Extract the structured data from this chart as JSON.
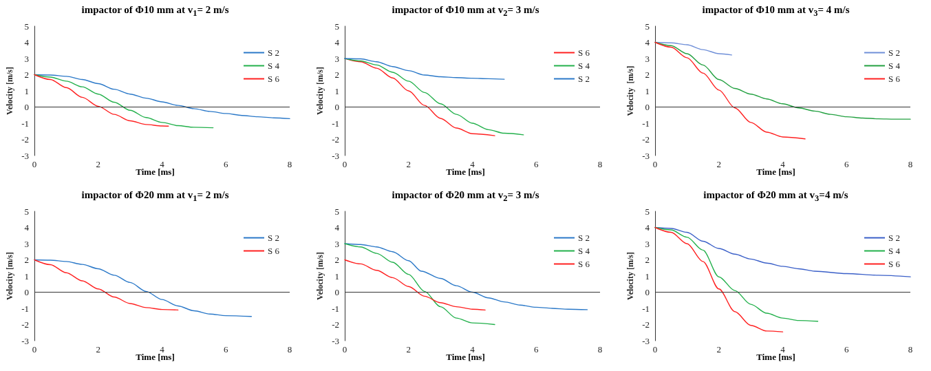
{
  "chart_data": [
    {
      "type": "line",
      "ref_lines": [
        {
          "axis": "y",
          "value": 0
        }
      ],
      "title": "impactor of Φ10 mm at v$_{1}$= 2 m/s",
      "xlabel": "Time [ms]",
      "ylabel": "Velocity [m/s]",
      "xlim": [
        0,
        8
      ],
      "xticks": [
        0,
        2,
        4,
        6,
        8
      ],
      "ylim": [
        -3,
        5
      ],
      "yticks": [
        -3,
        -2,
        -1,
        0,
        1,
        2,
        3,
        4,
        5
      ],
      "grid": false,
      "legend": "right",
      "marker": "none",
      "line_style": "solid",
      "series": [
        {
          "name": "S 2",
          "color": "#2a78c8",
          "x": [
            0,
            0.5,
            1,
            1.5,
            2,
            2.5,
            3,
            3.5,
            4,
            4.5,
            5,
            5.5,
            6,
            6.5,
            7,
            7.5,
            8
          ],
          "values": [
            2,
            1.98,
            1.9,
            1.7,
            1.45,
            1.1,
            0.8,
            0.55,
            0.32,
            0.1,
            -0.1,
            -0.27,
            -0.4,
            -0.52,
            -0.6,
            -0.67,
            -0.72
          ]
        },
        {
          "name": "S 4",
          "color": "#22b04b",
          "x": [
            0,
            0.5,
            1,
            1.5,
            2,
            2.5,
            3,
            3.5,
            4,
            4.5,
            5,
            5.6
          ],
          "values": [
            2,
            1.85,
            1.6,
            1.25,
            0.8,
            0.3,
            -0.2,
            -0.65,
            -0.95,
            -1.15,
            -1.25,
            -1.28
          ]
        },
        {
          "name": "S 6",
          "color": "#ff2020",
          "x": [
            0,
            0.5,
            1,
            1.5,
            2,
            2.5,
            3,
            3.5,
            4,
            4.2
          ],
          "values": [
            2,
            1.7,
            1.2,
            0.6,
            0.05,
            -0.45,
            -0.85,
            -1.08,
            -1.17,
            -1.18
          ]
        }
      ]
    },
    {
      "type": "line",
      "ref_lines": [
        {
          "axis": "y",
          "value": 0
        }
      ],
      "title": "impactor of Φ10 mm at v$_{2}$= 3 m/s",
      "xlabel": "Time [ms]",
      "ylabel": "Velocity [m/s]",
      "xlim": [
        0,
        8
      ],
      "xticks": [
        0,
        2,
        4,
        6,
        8
      ],
      "ylim": [
        -3,
        5
      ],
      "yticks": [
        -3,
        -2,
        -1,
        0,
        1,
        2,
        3,
        4,
        5
      ],
      "grid": false,
      "legend": "right",
      "marker": "none",
      "line_style": "solid",
      "series": [
        {
          "name": "S 6",
          "color": "#ff2020",
          "x": [
            0,
            0.5,
            1,
            1.5,
            2,
            2.5,
            3,
            3.5,
            4,
            4.7
          ],
          "values": [
            3,
            2.8,
            2.4,
            1.8,
            1,
            0.1,
            -0.7,
            -1.3,
            -1.65,
            -1.77
          ]
        },
        {
          "name": "S 4",
          "color": "#22b04b",
          "x": [
            0,
            0.5,
            1,
            1.5,
            2,
            2.5,
            3,
            3.5,
            4,
            4.5,
            5,
            5.6
          ],
          "values": [
            3,
            2.85,
            2.6,
            2.15,
            1.6,
            0.9,
            0.2,
            -0.45,
            -1,
            -1.4,
            -1.62,
            -1.72
          ]
        },
        {
          "name": "S 2",
          "color": "#2a78c8",
          "x": [
            0,
            0.5,
            1,
            1.5,
            2,
            2.5,
            3,
            3.5,
            4,
            4.5,
            5
          ],
          "values": [
            3,
            2.98,
            2.8,
            2.5,
            2.25,
            1.98,
            1.87,
            1.82,
            1.78,
            1.75,
            1.72
          ]
        }
      ]
    },
    {
      "type": "line",
      "ref_lines": [
        {
          "axis": "y",
          "value": 0
        }
      ],
      "title": "impactor of Φ10 mm at v$_{3}$= 4 m/s",
      "xlabel": "Time [ms]",
      "ylabel": "Velocity  [m/s]",
      "xlim": [
        0,
        8
      ],
      "xticks": [
        0,
        2,
        4,
        6,
        8
      ],
      "ylim": [
        -3,
        5
      ],
      "yticks": [
        -3,
        -2,
        -1,
        0,
        1,
        2,
        3,
        4,
        5
      ],
      "grid": false,
      "legend": "right",
      "marker": "none",
      "line_style": "solid",
      "series": [
        {
          "name": "S 2",
          "color": "#6f8fd8",
          "x": [
            0,
            0.5,
            1,
            1.5,
            2,
            2.4
          ],
          "values": [
            4,
            3.97,
            3.85,
            3.55,
            3.3,
            3.22
          ]
        },
        {
          "name": "S 4",
          "color": "#22a040",
          "x": [
            0,
            0.5,
            1,
            1.5,
            2,
            2.5,
            3,
            3.5,
            4,
            4.5,
            5,
            5.5,
            6,
            6.5,
            7,
            7.5,
            8
          ],
          "values": [
            4,
            3.8,
            3.3,
            2.6,
            1.7,
            1.15,
            0.8,
            0.5,
            0.2,
            -0.05,
            -0.25,
            -0.45,
            -0.6,
            -0.68,
            -0.73,
            -0.75,
            -0.75
          ]
        },
        {
          "name": "S 6",
          "color": "#ff2020",
          "x": [
            0,
            0.5,
            1,
            1.5,
            2,
            2.5,
            3,
            3.5,
            4,
            4.7
          ],
          "values": [
            4,
            3.7,
            3.05,
            2.1,
            1.05,
            -0.05,
            -0.95,
            -1.55,
            -1.85,
            -1.97
          ]
        }
      ]
    },
    {
      "type": "line",
      "ref_lines": [
        {
          "axis": "y",
          "value": 0
        }
      ],
      "title": "impactor of Φ20 mm at v$_{1}$= 2 m/s",
      "xlabel": "Time [ms]",
      "ylabel": "Velocity [m/s]",
      "xlim": [
        0,
        8
      ],
      "xticks": [
        0,
        2,
        4,
        6,
        8
      ],
      "ylim": [
        -3,
        5
      ],
      "yticks": [
        -3,
        -2,
        -1,
        0,
        1,
        2,
        3,
        4,
        5
      ],
      "grid": false,
      "legend": "right",
      "marker": "none",
      "line_style": "solid",
      "series": [
        {
          "name": "S 2",
          "color": "#2a78c8",
          "x": [
            0,
            0.5,
            1,
            1.5,
            2,
            2.5,
            3,
            3.5,
            4,
            4.5,
            5,
            5.5,
            6,
            6.8
          ],
          "values": [
            2,
            1.98,
            1.9,
            1.72,
            1.45,
            1.05,
            0.6,
            0.05,
            -0.45,
            -0.85,
            -1.15,
            -1.35,
            -1.45,
            -1.5
          ]
        },
        {
          "name": "S 6",
          "color": "#ff2020",
          "x": [
            0,
            0.5,
            1,
            1.5,
            2,
            2.5,
            3,
            3.5,
            4,
            4.5
          ],
          "values": [
            2,
            1.7,
            1.2,
            0.7,
            0.2,
            -0.3,
            -0.7,
            -0.95,
            -1.07,
            -1.1
          ]
        }
      ]
    },
    {
      "type": "line",
      "ref_lines": [
        {
          "axis": "y",
          "value": 0
        }
      ],
      "title": "impactor of Φ20 mm at v$_{2}$= 3 m/s",
      "xlabel": "Time [ms]",
      "ylabel": "Velocity [m/s]",
      "xlim": [
        0,
        8
      ],
      "xticks": [
        0,
        2,
        4,
        6,
        8
      ],
      "ylim": [
        -3,
        5
      ],
      "yticks": [
        -3,
        -2,
        -1,
        0,
        1,
        2,
        3,
        4,
        5
      ],
      "grid": false,
      "legend": "right",
      "marker": "none",
      "line_style": "solid",
      "series": [
        {
          "name": "S 2",
          "color": "#2a78c8",
          "x": [
            0,
            0.5,
            1,
            1.5,
            2,
            2.4,
            3,
            3.5,
            4,
            4.5,
            5,
            5.5,
            6,
            6.5,
            7,
            7.6
          ],
          "values": [
            3,
            2.95,
            2.8,
            2.5,
            1.95,
            1.3,
            0.85,
            0.4,
            0,
            -0.35,
            -0.6,
            -0.8,
            -0.93,
            -1,
            -1.05,
            -1.08
          ]
        },
        {
          "name": "S 4",
          "color": "#22b04b",
          "x": [
            0,
            0.5,
            1,
            1.5,
            2,
            2.5,
            3,
            3.5,
            4,
            4.7
          ],
          "values": [
            3,
            2.8,
            2.4,
            1.85,
            1.1,
            0.05,
            -0.9,
            -1.6,
            -1.9,
            -2
          ]
        },
        {
          "name": "S 6",
          "color": "#ff2020",
          "x": [
            0,
            0.5,
            1,
            1.5,
            2,
            2.5,
            3,
            3.5,
            4,
            4.4
          ],
          "values": [
            2,
            1.75,
            1.35,
            0.9,
            0.35,
            -0.25,
            -0.65,
            -0.9,
            -1.05,
            -1.1
          ]
        }
      ]
    },
    {
      "type": "line",
      "ref_lines": [
        {
          "axis": "y",
          "value": 0
        }
      ],
      "title": "impactor of Φ20 mm at v$_{3}$=4 m/s",
      "xlabel": "Time [ms]",
      "ylabel": "Velocity [m/s]",
      "xlim": [
        0,
        8
      ],
      "xticks": [
        0,
        2,
        4,
        6,
        8
      ],
      "ylim": [
        -3,
        5
      ],
      "yticks": [
        -3,
        -2,
        -1,
        0,
        1,
        2,
        3,
        4,
        5
      ],
      "grid": false,
      "legend": "right",
      "marker": "none",
      "line_style": "solid",
      "series": [
        {
          "name": "S 2",
          "color": "#3a5fc8",
          "x": [
            0,
            0.5,
            1,
            1.5,
            2,
            2.5,
            3,
            3.5,
            4,
            4.5,
            5,
            6,
            7,
            8
          ],
          "values": [
            4,
            3.95,
            3.7,
            3.15,
            2.7,
            2.35,
            2.05,
            1.8,
            1.6,
            1.45,
            1.3,
            1.15,
            1.05,
            0.95
          ]
        },
        {
          "name": "S 4",
          "color": "#22b04b",
          "x": [
            0,
            0.5,
            1,
            1.5,
            2,
            2.5,
            3,
            3.5,
            4,
            4.5,
            5.1
          ],
          "values": [
            4,
            3.85,
            3.4,
            2.6,
            0.95,
            0.1,
            -0.75,
            -1.3,
            -1.6,
            -1.75,
            -1.8
          ]
        },
        {
          "name": "S 6",
          "color": "#ff2020",
          "x": [
            0,
            0.5,
            1,
            1.5,
            2,
            2.5,
            3,
            3.5,
            4
          ],
          "values": [
            4,
            3.7,
            3,
            1.9,
            0.2,
            -1.2,
            -2.05,
            -2.4,
            -2.45
          ]
        }
      ]
    }
  ]
}
